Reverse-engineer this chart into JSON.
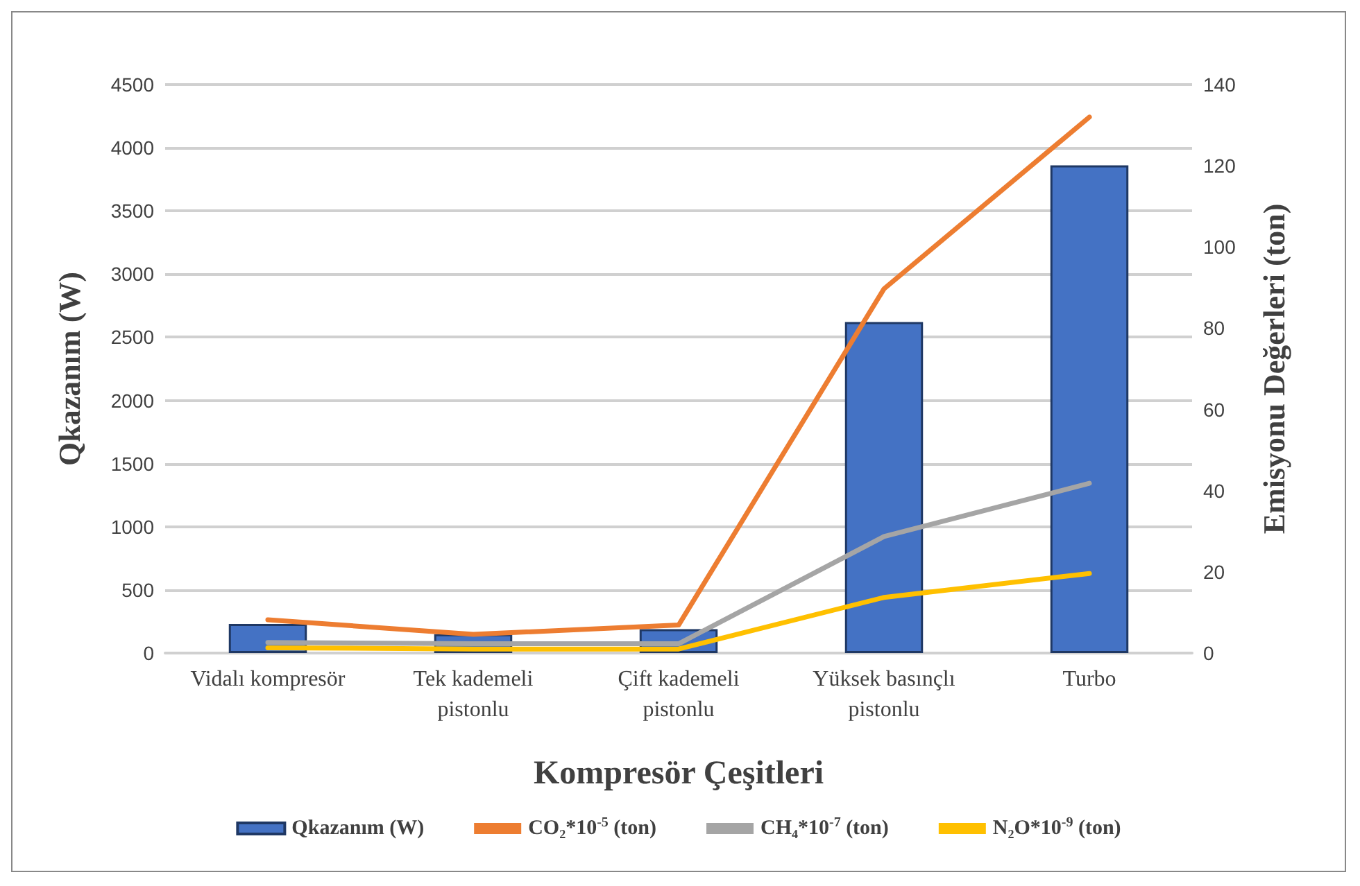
{
  "chart_data": {
    "type": "bar",
    "xlabel": "Kompresör Çeşitleri",
    "ylabel": "Qkazanım (W)",
    "y2label": "Emisyonu Değerleri (ton)",
    "categories": [
      "Vidalı kompresör",
      "Tek kademeli\npistonlu",
      "Çift kademeli\npistonlu",
      "Yüksek basınçlı\npistonlu",
      "Turbo"
    ],
    "series": [
      {
        "name": "Qkazanım (W)",
        "color": "#4472c4",
        "values": [
          230,
          150,
          190,
          2620,
          3860
        ]
      },
      {
        "name": "CO₂*10$^{-5}$ (ton)",
        "type": "line",
        "axis": "y2",
        "color": "#ed7d31",
        "values": [
          8.2,
          4.6,
          6.9,
          89.7,
          132
        ]
      },
      {
        "name": "CH₄*10$^{-7}$ (ton)",
        "type": "line",
        "axis": "y2",
        "color": "#a5a5a5",
        "values": [
          2.6,
          2.3,
          2.3,
          28.7,
          41.8
        ]
      },
      {
        "name": "N₂O*10$^{-9}$ (ton)",
        "type": "line",
        "axis": "y2",
        "color": "#ffc000",
        "values": [
          1.3,
          1.0,
          1.0,
          13.7,
          19.6
        ]
      }
    ],
    "ylim": [
      0,
      4500
    ],
    "yticks": [
      0,
      500,
      1000,
      1500,
      2000,
      2500,
      3000,
      3500,
      4000,
      4500
    ],
    "y2lim": [
      0,
      140
    ],
    "y2ticks": [
      0,
      20,
      40,
      60,
      80,
      100,
      120,
      140
    ],
    "grid": "y",
    "legend": "bottom",
    "marker": "none",
    "line_style": "solid"
  }
}
